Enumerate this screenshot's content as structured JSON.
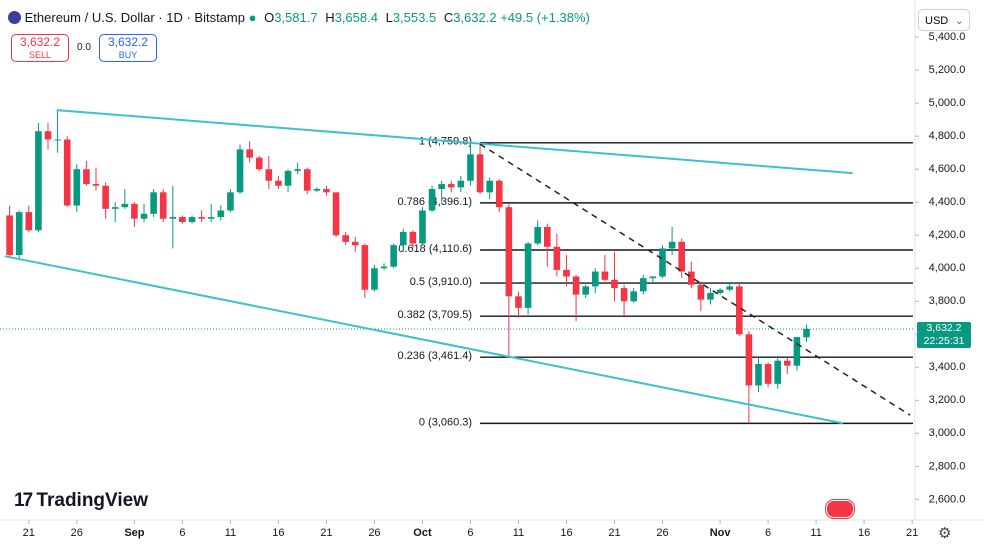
{
  "header": {
    "title": "Ethereum / U.S. Dollar · 1D · Bitstamp",
    "o_label": "O",
    "o": "3,581.7",
    "h_label": "H",
    "h": "3,658.4",
    "l_label": "L",
    "l": "3,553.5",
    "c_label": "C",
    "c": "3,632.2",
    "change": "+49.5 (+1.38%)"
  },
  "trade": {
    "sell_price": "3,632.2",
    "sell": "SELL",
    "spread": "0.0",
    "buy_price": "3,632.2",
    "buy": "BUY"
  },
  "currency": "USD",
  "brand": "TradingView",
  "price_tag": {
    "price": "3,632.2",
    "countdown": "22:25:31"
  },
  "chart_data": {
    "type": "candlestick",
    "up_color": "#089981",
    "down_color": "#f23645",
    "open": [
      4320,
      4080,
      4340,
      4230,
      4830,
      4780,
      4780,
      4380,
      4600,
      4510,
      4500,
      4360,
      4370,
      4390,
      4300,
      4330,
      4460,
      4300,
      4310,
      4280,
      4310,
      4300,
      4310,
      4350,
      4460,
      4720,
      4670,
      4600,
      4530,
      4500,
      4590,
      4600,
      4470,
      4480,
      4460,
      4200,
      4160,
      4140,
      3870,
      4000,
      4010,
      4140,
      4220,
      4150,
      4350,
      4480,
      4510,
      4490,
      4530,
      4690,
      4460,
      4530,
      4370,
      3830,
      3760,
      4150,
      4250,
      4130,
      3990,
      3950,
      3840,
      3890,
      3980,
      3930,
      3880,
      3800,
      3860,
      3940,
      3950,
      4120,
      4160,
      3980,
      3900,
      3810,
      3850,
      3870,
      3890,
      3600,
      3290,
      3420,
      3300,
      3440,
      3410,
      3581.7
    ],
    "high": [
      4380,
      4350,
      4380,
      4880,
      4880,
      4960,
      4800,
      4630,
      4650,
      4610,
      4520,
      4400,
      4480,
      4400,
      4390,
      4480,
      4480,
      4500,
      4320,
      4320,
      4350,
      4390,
      4380,
      4480,
      4750,
      4770,
      4680,
      4680,
      4560,
      4600,
      4640,
      4610,
      4490,
      4500,
      4460,
      4220,
      4190,
      4150,
      4020,
      4030,
      4150,
      4240,
      4230,
      4370,
      4500,
      4530,
      4530,
      4560,
      4760,
      4759.8,
      4550,
      4540,
      4390,
      3860,
      4160,
      4290,
      4270,
      4210,
      4080,
      3960,
      3900,
      4000,
      4080,
      4100,
      3900,
      3880,
      3960,
      3950,
      4140,
      4250,
      4180,
      4040,
      3920,
      3880,
      3880,
      3910,
      3910,
      3620,
      3470,
      3430,
      3470,
      3460,
      3570,
      3658.4
    ],
    "low": [
      4070,
      4060,
      4220,
      4220,
      4720,
      4700,
      4370,
      4340,
      4500,
      4470,
      4300,
      4280,
      4360,
      4250,
      4280,
      4310,
      4280,
      4120,
      4270,
      4270,
      4280,
      4280,
      4290,
      4340,
      4450,
      4640,
      4590,
      4480,
      4480,
      4460,
      4570,
      4450,
      4460,
      4440,
      4190,
      4140,
      4100,
      3820,
      3860,
      3990,
      4000,
      4100,
      4120,
      4140,
      4340,
      4400,
      4460,
      4460,
      4500,
      4450,
      4420,
      4340,
      3461.4,
      3700,
      3720,
      4140,
      4010,
      3950,
      3890,
      3680,
      3820,
      3850,
      3920,
      3800,
      3710,
      3790,
      3840,
      3910,
      3940,
      4080,
      3940,
      3880,
      3740,
      3780,
      3840,
      3860,
      3590,
      3060.3,
      3250,
      3280,
      3270,
      3360,
      3380,
      3553.5
    ],
    "close": [
      4080,
      4340,
      4230,
      4830,
      4780,
      4780,
      4380,
      4600,
      4510,
      4500,
      4360,
      4370,
      4390,
      4300,
      4330,
      4460,
      4300,
      4310,
      4280,
      4310,
      4300,
      4310,
      4350,
      4460,
      4720,
      4670,
      4600,
      4530,
      4500,
      4590,
      4600,
      4470,
      4480,
      4460,
      4200,
      4160,
      4140,
      3870,
      4000,
      4010,
      4140,
      4220,
      4150,
      4350,
      4480,
      4510,
      4490,
      4530,
      4690,
      4460,
      4530,
      4370,
      3830,
      3760,
      4150,
      4250,
      4130,
      3990,
      3950,
      3840,
      3890,
      3980,
      3930,
      3880,
      3800,
      3860,
      3940,
      3950,
      4120,
      4160,
      3980,
      3900,
      3810,
      3850,
      3870,
      3890,
      3600,
      3290,
      3420,
      3300,
      3440,
      3410,
      3583,
      3632.2
    ],
    "xlim": [
      -1,
      94.3
    ],
    "ylim": [
      2475,
      5625
    ],
    "xticks": [
      {
        "value": 2,
        "label": "21"
      },
      {
        "value": 7,
        "label": "26"
      },
      {
        "value": 13,
        "label": "Sep"
      },
      {
        "value": 18,
        "label": "6"
      },
      {
        "value": 23,
        "label": "11"
      },
      {
        "value": 28,
        "label": "16"
      },
      {
        "value": 33,
        "label": "21"
      },
      {
        "value": 38,
        "label": "26"
      },
      {
        "value": 43,
        "label": "Oct"
      },
      {
        "value": 48,
        "label": "6"
      },
      {
        "value": 53,
        "label": "11"
      },
      {
        "value": 58,
        "label": "16"
      },
      {
        "value": 63,
        "label": "21"
      },
      {
        "value": 68,
        "label": "26"
      },
      {
        "value": 74,
        "label": "Nov"
      },
      {
        "value": 79,
        "label": "6"
      },
      {
        "value": 84,
        "label": "11"
      },
      {
        "value": 89,
        "label": "16"
      },
      {
        "value": 94,
        "label": "21"
      }
    ],
    "yticks": [
      {
        "value": 2600,
        "label": "2,600.0"
      },
      {
        "value": 2800,
        "label": "2,800.0"
      },
      {
        "value": 3000,
        "label": "3,000.0"
      },
      {
        "value": 3200,
        "label": "3,200.0"
      },
      {
        "value": 3400,
        "label": "3,400.0"
      },
      {
        "value": 3600,
        "label": "3,600.0"
      },
      {
        "value": 3800,
        "label": "3,800.0"
      },
      {
        "value": 4000,
        "label": "4,000.0"
      },
      {
        "value": 4200,
        "label": "4,200.0"
      },
      {
        "value": 4400,
        "label": "4,400.0"
      },
      {
        "value": 4600,
        "label": "4,600.0"
      },
      {
        "value": 4800,
        "label": "4,800.0"
      },
      {
        "value": 5000,
        "label": "5,000.0"
      },
      {
        "value": 5200,
        "label": "5,200.0"
      },
      {
        "value": 5400,
        "label": "5,400.0"
      }
    ],
    "last_price": 3632.2,
    "fib_start": 49,
    "fib_levels": [
      {
        "value": 4759.8,
        "label": "1 (4,759.8)"
      },
      {
        "value": 4396.1,
        "label": "0.786 (4,396.1)"
      },
      {
        "value": 4110.6,
        "label": "0.618 (4,110.6)"
      },
      {
        "value": 3910.0,
        "label": "0.5 (3,910.0)"
      },
      {
        "value": 3709.5,
        "label": "0.382 (3,709.5)"
      },
      {
        "value": 3461.4,
        "label": "0.236 (3,461.4)"
      },
      {
        "value": 3060.3,
        "label": "0 (3,060.3)"
      }
    ],
    "trend_lines": [
      {
        "x": [
          4.9,
          87.8
        ],
        "y": [
          4958,
          4576
        ],
        "color": "#3bc1d0",
        "style": "solid"
      },
      {
        "x": [
          -0.5,
          86.8
        ],
        "y": [
          4073,
          3061
        ],
        "color": "#3bc1d0",
        "style": "solid"
      },
      {
        "x": [
          49,
          93.8
        ],
        "y": [
          4752,
          3110
        ],
        "color": "#222222",
        "style": "dashed"
      }
    ]
  }
}
